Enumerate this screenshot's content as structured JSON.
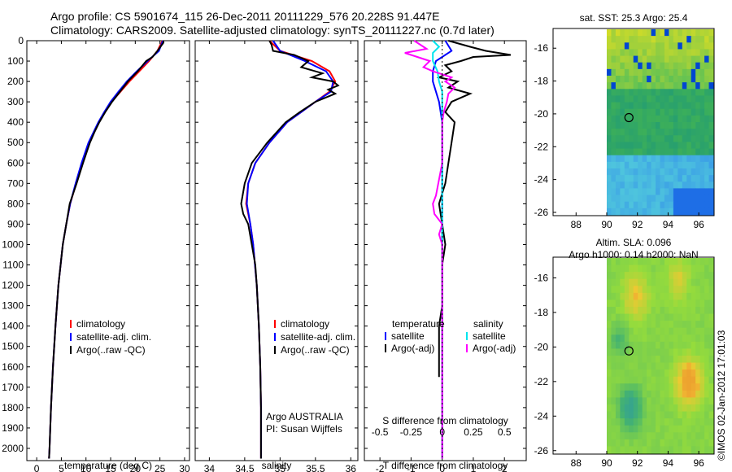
{
  "header": {
    "line1": "Argo profile: CS 5901674_115 26-Dec-2011 20111229_576 20.228S 91.447E",
    "line2": "Climatology: CARS2009. Satellite-adjusted climatology: synTS_20111227.nc (0.7d later)"
  },
  "stamp": "©IMOS 02-Jan-2012 17:01:03",
  "colors": {
    "climatology": "#ff0000",
    "satellite": "#0000ff",
    "argo": "#000000",
    "satellite_s": "#00e5ee",
    "argo_s": "#ff00ff"
  },
  "chart_data": [
    {
      "id": "temperature",
      "type": "line",
      "xlabel": "temperature (deg C)",
      "ylabel": "",
      "xlim": [
        -2,
        31
      ],
      "ylim": [
        2060,
        0
      ],
      "xticks": [
        0,
        5,
        10,
        15,
        20,
        25,
        30
      ],
      "yticks": [
        0,
        100,
        200,
        300,
        400,
        500,
        600,
        700,
        800,
        900,
        1000,
        1100,
        1200,
        1300,
        1400,
        1500,
        1600,
        1700,
        1800,
        1900,
        2000
      ],
      "legend": [
        "climatology",
        "satellite-adj. clim.",
        "Argo(..raw -QC)"
      ],
      "series": [
        {
          "name": "climatology",
          "depth": [
            0,
            50,
            100,
            150,
            200,
            250,
            300,
            350,
            400,
            500,
            600,
            700,
            800,
            900,
            1000,
            1200,
            1400,
            1600,
            1800,
            2000,
            2050
          ],
          "values": [
            25.5,
            24.5,
            22.8,
            20.8,
            18.8,
            17.0,
            15.2,
            13.8,
            12.6,
            10.6,
            9.2,
            8.0,
            6.8,
            6.0,
            5.3,
            4.4,
            3.8,
            3.3,
            2.9,
            2.6,
            2.5
          ]
        },
        {
          "name": "satellite-adj. clim.",
          "depth": [
            0,
            50,
            100,
            150,
            200,
            250,
            300,
            350,
            400,
            500,
            600,
            700,
            800,
            900,
            1000,
            1200,
            1400,
            1600,
            1800,
            2000,
            2050
          ],
          "values": [
            25.6,
            24.8,
            22.5,
            20.3,
            18.3,
            16.6,
            15.0,
            13.7,
            12.5,
            10.5,
            9.1,
            7.9,
            6.8,
            6.0,
            5.3,
            4.4,
            3.8,
            3.3,
            2.9,
            2.6,
            2.5
          ]
        },
        {
          "name": "Argo(..raw -QC)",
          "depth": [
            0,
            10,
            50,
            80,
            100,
            150,
            200,
            250,
            300,
            350,
            400,
            450,
            500,
            550,
            600,
            700,
            800,
            900,
            1000,
            1200,
            1400,
            1600,
            1800,
            2000,
            2050
          ],
          "values": [
            25.7,
            25.7,
            24.5,
            23.5,
            22.2,
            20.5,
            18.5,
            16.9,
            15.3,
            13.9,
            12.7,
            11.7,
            10.8,
            10.1,
            9.4,
            8.1,
            6.7,
            6.0,
            5.3,
            4.4,
            3.8,
            3.3,
            2.9,
            2.6,
            2.5
          ]
        }
      ]
    },
    {
      "id": "salinity",
      "type": "line",
      "xlabel": "salinity",
      "ylabel": "",
      "xlim": [
        33.8,
        36.1
      ],
      "ylim": [
        2060,
        0
      ],
      "xticks": [
        34,
        34.5,
        35,
        35.5,
        36
      ],
      "legend": [
        "climatology",
        "satellite-adj. clim.",
        "Argo(..raw -QC)"
      ],
      "annotation": [
        "Argo AUSTRALIA",
        "PI: Susan Wijffels"
      ],
      "series": [
        {
          "name": "climatology",
          "depth": [
            0,
            50,
            100,
            150,
            200,
            250,
            300,
            350,
            400,
            500,
            600,
            700,
            800,
            900,
            1000,
            1200,
            1400,
            1600,
            1800,
            2000,
            2050
          ],
          "values": [
            34.85,
            35.0,
            35.45,
            35.7,
            35.78,
            35.7,
            35.5,
            35.3,
            35.1,
            34.85,
            34.65,
            34.55,
            34.52,
            34.58,
            34.62,
            34.67,
            34.7,
            34.72,
            34.73,
            34.73,
            34.73
          ]
        },
        {
          "name": "satellite-adj. clim.",
          "depth": [
            0,
            50,
            100,
            150,
            200,
            250,
            300,
            350,
            400,
            500,
            600,
            700,
            800,
            900,
            1000,
            1200,
            1400,
            1600,
            1800,
            2000,
            2050
          ],
          "values": [
            34.9,
            35.0,
            35.35,
            35.65,
            35.75,
            35.72,
            35.5,
            35.3,
            35.1,
            34.85,
            34.65,
            34.55,
            34.53,
            34.58,
            34.62,
            34.67,
            34.7,
            34.72,
            34.73,
            34.73,
            34.73
          ]
        },
        {
          "name": "Argo(..raw -QC)",
          "depth": [
            0,
            20,
            50,
            70,
            100,
            130,
            160,
            180,
            200,
            220,
            240,
            260,
            300,
            350,
            400,
            500,
            600,
            700,
            800,
            850,
            900,
            1000,
            1100,
            1200,
            1400,
            1600,
            1800,
            2000,
            2050
          ],
          "values": [
            34.85,
            34.88,
            34.9,
            35.2,
            35.4,
            35.3,
            35.6,
            35.45,
            35.75,
            35.82,
            35.68,
            35.78,
            35.5,
            35.28,
            35.08,
            34.82,
            34.6,
            34.5,
            34.45,
            34.48,
            34.55,
            34.6,
            34.65,
            34.67,
            34.7,
            34.72,
            34.73,
            34.73,
            34.73
          ]
        }
      ]
    },
    {
      "id": "difference",
      "type": "line",
      "xlabel": "T difference from climatology",
      "xlabel_top": "S difference from climatology",
      "xlim": [
        -2.5,
        2.7
      ],
      "ylim": [
        2060,
        0
      ],
      "xticks": [
        -2,
        -1,
        0,
        1,
        2
      ],
      "xticks_s": [
        -0.5,
        -0.25,
        0,
        0.25,
        0.5
      ],
      "legend_headers": [
        "temperature",
        "salinity"
      ],
      "legend": [
        "satellite",
        "Argo(-adj)",
        "satellite",
        "Argo(-adj)"
      ],
      "series": [
        {
          "name": "T satellite",
          "depth": [
            0,
            50,
            100,
            150,
            200,
            300,
            400,
            600,
            800,
            1000,
            1500,
            2050
          ],
          "values": [
            0.1,
            0.3,
            -0.2,
            -0.3,
            -0.3,
            -0.1,
            0,
            0,
            0,
            0,
            0,
            0
          ]
        },
        {
          "name": "T Argo(-adj)",
          "depth": [
            0,
            30,
            50,
            70,
            80,
            100,
            120,
            150,
            180,
            200,
            230,
            260,
            300,
            350,
            400,
            500,
            600,
            700,
            800,
            900,
            1000,
            1100,
            1200,
            1300,
            1400,
            1500,
            1600,
            1650
          ],
          "values": [
            0.2,
            0.9,
            1.4,
            2.2,
            1.0,
            0.6,
            0.1,
            0.3,
            -0.1,
            0.5,
            0.2,
            0.9,
            0.3,
            0.1,
            0.4,
            0.3,
            0.2,
            0.1,
            -0.1,
            0.0,
            0.1,
            0.0,
            0.0,
            0.0,
            -0.1,
            -0.1,
            -0.1,
            -0.1
          ]
        },
        {
          "name": "S satellite",
          "depth": [
            0,
            30,
            60,
            100,
            150,
            200,
            250,
            300,
            400,
            600,
            800,
            1000,
            1500,
            2050
          ],
          "values": [
            -0.3,
            -0.1,
            -0.3,
            -0.3,
            -0.15,
            -0.1,
            0.0,
            0.0,
            0.0,
            0.0,
            0.0,
            0.0,
            0.0,
            0.0
          ]
        },
        {
          "name": "S Argo(-adj)",
          "depth": [
            0,
            40,
            60,
            80,
            100,
            130,
            150,
            180,
            200,
            230,
            260,
            300,
            350,
            400,
            600,
            760,
            800,
            850,
            900,
            950,
            1000,
            1200,
            1400,
            1600,
            2050
          ],
          "values": [
            -0.9,
            -0.5,
            -1.2,
            -0.8,
            -0.4,
            -0.6,
            -0.3,
            0.3,
            0.1,
            0.4,
            0.2,
            0.15,
            0.05,
            0.0,
            0.0,
            -0.2,
            -0.3,
            -0.25,
            0.0,
            -0.1,
            0.0,
            0.0,
            0.0,
            0.0,
            0.0
          ]
        }
      ]
    },
    {
      "id": "sst_map",
      "type": "heatmap",
      "title": "sat. SST: 25.3 Argo: 25.4",
      "xlim": [
        86.5,
        97
      ],
      "ylim": [
        -26.2,
        -14.8
      ],
      "xticks": [
        88,
        90,
        92,
        94,
        96
      ],
      "yticks": [
        -16,
        -18,
        -20,
        -22,
        -24,
        -26
      ],
      "marker_lon": 91.447,
      "marker_lat": -20.228
    },
    {
      "id": "sla_map",
      "type": "heatmap",
      "title": "Altim. SLA: 0.096",
      "subtitle": "Argo h1000: 0.14 h2000: NaN",
      "xlim": [
        86.5,
        97
      ],
      "ylim": [
        -26.2,
        -14.8
      ],
      "xticks": [
        88,
        90,
        92,
        94,
        96
      ],
      "yticks": [
        -16,
        -18,
        -20,
        -22,
        -24,
        -26
      ],
      "marker_lon": 91.447,
      "marker_lat": -20.228
    }
  ]
}
